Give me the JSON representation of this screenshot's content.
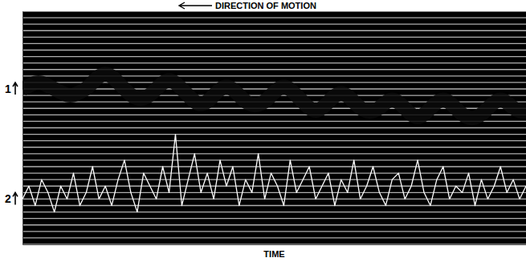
{
  "chart_data": {
    "type": "line",
    "title": "DIRECTION OF MOTION",
    "x_label": "TIME",
    "x": [
      0,
      1,
      2,
      3,
      4,
      5,
      6,
      7,
      8,
      9,
      10,
      11,
      12,
      13,
      14,
      15,
      16,
      17,
      18,
      19,
      20,
      21,
      22,
      23,
      24,
      25,
      26,
      27,
      28,
      29,
      30,
      31,
      32,
      33,
      34,
      35,
      36,
      37,
      38,
      39,
      40,
      41,
      42,
      43,
      44,
      45,
      46,
      47,
      48,
      49,
      50,
      51,
      52,
      53,
      54,
      55,
      56,
      57,
      58,
      59,
      60,
      61,
      62,
      63,
      64,
      65,
      66,
      67,
      68,
      69,
      70,
      71,
      72,
      73,
      74,
      75,
      76,
      77,
      78,
      79
    ],
    "xlim": [
      0,
      79
    ],
    "xticks": [],
    "ylim": [
      0,
      36
    ],
    "yticks": [
      0,
      1,
      2,
      3,
      4,
      5,
      6,
      7,
      8,
      9,
      10,
      11,
      12,
      13,
      14,
      15,
      16,
      17,
      18,
      19,
      20,
      21,
      22,
      23,
      24,
      25,
      26,
      27,
      28,
      29,
      30,
      31,
      32,
      33,
      34,
      35,
      36
    ],
    "grid": true,
    "tick_labels": false,
    "series": [
      {
        "name": "1",
        "color": "#0a0a0a",
        "values": [
          24,
          24.5,
          25,
          25,
          24.5,
          24,
          23.5,
          23,
          23,
          23.5,
          24,
          25,
          26,
          26.5,
          26,
          25,
          24,
          23,
          22.5,
          22.5,
          23,
          24,
          25,
          25.5,
          25,
          24,
          23,
          22,
          21.5,
          22,
          23,
          24,
          24.5,
          24,
          23,
          22,
          21.5,
          21.5,
          22,
          23,
          24,
          24.5,
          24,
          23,
          22,
          21,
          20.5,
          21,
          22,
          23,
          23.5,
          23,
          22,
          21,
          20.5,
          20.5,
          21,
          22,
          22.5,
          22,
          21,
          20,
          19.5,
          20,
          21,
          22,
          22.5,
          22,
          21,
          20,
          19.5,
          19.5,
          20,
          21,
          22,
          22.5,
          22,
          21,
          20.5,
          20.5
        ]
      },
      {
        "name": "2",
        "color": "#ffffff",
        "values": [
          7,
          9,
          6,
          10,
          8,
          5,
          9,
          7,
          11,
          6,
          8,
          12,
          7,
          9,
          6,
          10,
          13,
          8,
          5,
          11,
          9,
          7,
          12,
          8,
          17,
          6,
          10,
          14,
          8,
          11,
          7,
          13,
          9,
          12,
          6,
          10,
          8,
          14,
          7,
          11,
          9,
          6,
          13,
          8,
          10,
          12,
          7,
          9,
          11,
          6,
          10,
          8,
          13,
          7,
          9,
          12,
          8,
          6,
          10,
          11,
          7,
          9,
          13,
          8,
          6,
          10,
          12,
          7,
          9,
          8,
          11,
          6,
          10,
          7,
          9,
          12,
          8,
          10,
          7,
          9
        ]
      }
    ]
  }
}
